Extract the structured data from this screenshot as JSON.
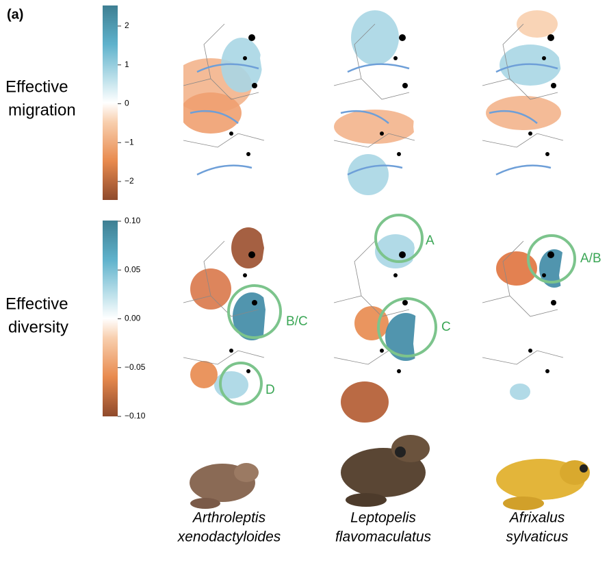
{
  "panel_label": "(a)",
  "rows": [
    {
      "label": [
        "Effective",
        "migration"
      ],
      "colorbar_ticks": [
        2,
        1,
        0,
        {
          "value": -1,
          "label": "−1"
        },
        {
          "value": -2,
          "label": "−2"
        }
      ]
    },
    {
      "label": [
        "Effective",
        "diversity"
      ],
      "colorbar_ticks": [
        {
          "value": 0.1,
          "label": "0.10"
        },
        {
          "value": 0.05,
          "label": "0.05"
        },
        {
          "value": 0,
          "label": "0.00"
        },
        {
          "value": -0.05,
          "label": "−0.05"
        },
        {
          "value": -0.1,
          "label": "−0.10"
        }
      ]
    }
  ],
  "annotations": [
    "B/C",
    "D",
    "A",
    "C",
    "A/B"
  ],
  "species": [
    [
      "Arthroleptis",
      "xenodactyloides"
    ],
    [
      "Leptopelis",
      "flavomaculatus"
    ],
    [
      "Afrixalus",
      "sylvaticus"
    ]
  ]
}
